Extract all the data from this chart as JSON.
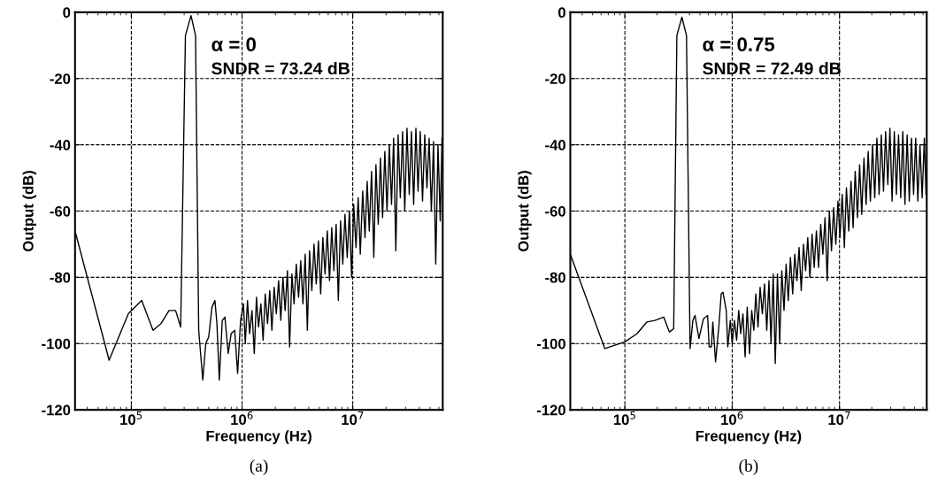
{
  "chart_data": [
    {
      "type": "line",
      "xlabel": "Frequency (Hz)",
      "ylabel": "Output (dB)",
      "log": "x",
      "grid": true,
      "line_style": "dashed",
      "marker": "none",
      "xlim": [
        31000.0,
        65000000.0
      ],
      "ylim": [
        -120,
        0
      ],
      "xticks": [
        {
          "value": 100000,
          "label": "10$^{5}$"
        },
        {
          "value": 1000000,
          "label": "10$^{6}$"
        },
        {
          "value": 10000000,
          "label": "10$^{7}$"
        }
      ],
      "yticks": [
        -120,
        -100,
        -80,
        -60,
        -40,
        -20,
        0
      ],
      "annotations": [
        "α = 0",
        "SNDR = 73.24 dB",
        "(a)"
      ],
      "series": [
        {
          "color": "#000000",
          "line_style": "solid",
          "x": [
            31000.0,
            63000.0,
            94000.0,
            124000.0,
            157000.0,
            185000.0,
            219000.0,
            251000.0,
            279000.0,
            308000.0,
            346000.0,
            380000.0,
            406000.0,
            442000.0,
            470000.0,
            500000.0,
            535000.0,
            569000.0,
            593000.0,
            623000.0,
            663000.0,
            700000.0,
            750000.0,
            797000.0,
            858000.0,
            912000.0,
            970000.0,
            1030000.0,
            1070000.0,
            1120000.0,
            1170000.0,
            1230000.0,
            1290000.0,
            1350000.0,
            1410000.0,
            1480000.0,
            1550000.0,
            1620000.0,
            1700000.0,
            1780000.0,
            1860000.0,
            1950000.0,
            2040000.0,
            2140000.0,
            2240000.0,
            2340000.0,
            2450000.0,
            2570000.0,
            2690000.0,
            2820000.0,
            2950000.0,
            3090000.0,
            3240000.0,
            3390000.0,
            3550000.0,
            3720000.0,
            3890000.0,
            4070000.0,
            4270000.0,
            4470000.0,
            4680000.0,
            4900000.0,
            5130000.0,
            5370000.0,
            5620000.0,
            5890000.0,
            6170000.0,
            6460000.0,
            6760000.0,
            7080000.0,
            7410000.0,
            7760000.0,
            8130000.0,
            8510000.0,
            8910000.0,
            9330000.0,
            9770000.0,
            10200000.0,
            10700000.0,
            11200000.0,
            11700000.0,
            12300000.0,
            12900000.0,
            13500000.0,
            14100000.0,
            14800000.0,
            15500000.0,
            16200000.0,
            17000000.0,
            17800000.0,
            18600000.0,
            19500000.0,
            20400000.0,
            21400000.0,
            22400000.0,
            23400000.0,
            24500000.0,
            25700000.0,
            26900000.0,
            28200000.0,
            29500000.0,
            30900000.0,
            32400000.0,
            33900000.0,
            35500000.0,
            37200000.0,
            38900000.0,
            40700000.0,
            42700000.0,
            44700000.0,
            46800000.0,
            49000000.0,
            51300000.0,
            53700000.0,
            56200000.0,
            58900000.0,
            61700000.0,
            64000000.0
          ],
          "values": [
            -66,
            -105,
            -91,
            -87,
            -96,
            -94,
            -90,
            -90,
            -95,
            -7,
            -1,
            -7,
            -96,
            -111,
            -100,
            -98,
            -89,
            -87,
            -94,
            -111,
            -93,
            -92,
            -103,
            -97,
            -96,
            -109,
            -93,
            -88,
            -100,
            -87,
            -97,
            -90,
            -103,
            -86,
            -95,
            -88,
            -99,
            -85,
            -94,
            -84,
            -96,
            -83,
            -91,
            -81,
            -93,
            -80,
            -90,
            -78,
            -101,
            -79,
            -88,
            -76,
            -86,
            -75,
            -88,
            -73,
            -96,
            -72,
            -84,
            -70,
            -82,
            -69,
            -85,
            -68,
            -79,
            -66,
            -81,
            -65,
            -78,
            -64,
            -87,
            -63,
            -76,
            -61,
            -74,
            -60,
            -80,
            -58,
            -71,
            -56,
            -73,
            -54,
            -68,
            -51,
            -66,
            -48,
            -74,
            -46,
            -64,
            -44,
            -62,
            -42,
            -60,
            -40,
            -58,
            -38,
            -72,
            -37,
            -56,
            -36,
            -60,
            -35,
            -55,
            -36,
            -58,
            -35,
            -54,
            -36,
            -57,
            -37,
            -53,
            -38,
            -60,
            -39,
            -76,
            -40,
            -63,
            -38
          ]
        }
      ]
    },
    {
      "type": "line",
      "xlabel": "Frequency (Hz)",
      "ylabel": "Output (dB)",
      "log": "x",
      "grid": true,
      "line_style": "dashed",
      "marker": "none",
      "xlim": [
        31000.0,
        65000000.0
      ],
      "ylim": [
        -120,
        0
      ],
      "xticks": [
        {
          "value": 100000,
          "label": "10$^{5}$"
        },
        {
          "value": 1000000,
          "label": "10$^{6}$"
        },
        {
          "value": 10000000,
          "label": "10$^{7}$"
        }
      ],
      "yticks": [
        -120,
        -100,
        -80,
        -60,
        -40,
        -20,
        0
      ],
      "annotations": [
        "α = 0.75",
        "SNDR = 72.49 dB",
        "(b)"
      ],
      "series": [
        {
          "color": "#000000",
          "line_style": "solid",
          "x": [
            31000.0,
            65000.0,
            100000.0,
            130000.0,
            160000.0,
            190000.0,
            230000.0,
            260000.0,
            285000.0,
            305000.0,
            340000.0,
            375000.0,
            405000.0,
            430000.0,
            450000.0,
            490000.0,
            540000.0,
            590000.0,
            610000.0,
            640000.0,
            660000.0,
            700000.0,
            750000.0,
            790000.0,
            820000.0,
            880000.0,
            910000.0,
            960000.0,
            1000000.0,
            1050000.0,
            1100000.0,
            1150000.0,
            1200000.0,
            1260000.0,
            1320000.0,
            1380000.0,
            1450000.0,
            1520000.0,
            1590000.0,
            1660000.0,
            1740000.0,
            1820000.0,
            1910000.0,
            2000000.0,
            2100000.0,
            2200000.0,
            2300000.0,
            2410000.0,
            2520000.0,
            2640000.0,
            2770000.0,
            2900000.0,
            3040000.0,
            3180000.0,
            3330000.0,
            3490000.0,
            3660000.0,
            3830000.0,
            4010000.0,
            4200000.0,
            4400000.0,
            4610000.0,
            4830000.0,
            5060000.0,
            5300000.0,
            5550000.0,
            5810000.0,
            6090000.0,
            6380000.0,
            6680000.0,
            7000000.0,
            7330000.0,
            7680000.0,
            8040000.0,
            8420000.0,
            8820000.0,
            9240000.0,
            9680000.0,
            10100000.0,
            10600000.0,
            11100000.0,
            11600000.0,
            12200000.0,
            12800000.0,
            13400000.0,
            14000000.0,
            14700000.0,
            15400000.0,
            16100000.0,
            16900000.0,
            17700000.0,
            18500000.0,
            19400000.0,
            20300000.0,
            21300000.0,
            22300000.0,
            23400000.0,
            24500000.0,
            25700000.0,
            26900000.0,
            28200000.0,
            29500000.0,
            30900000.0,
            32400000.0,
            33900000.0,
            35500000.0,
            37200000.0,
            38900000.0,
            40700000.0,
            42700000.0,
            44700000.0,
            46800000.0,
            49000000.0,
            51300000.0,
            53700000.0,
            56200000.0,
            58900000.0,
            61700000.0,
            64000000.0
          ],
          "values": [
            -73,
            -101.5,
            -99.5,
            -97,
            -93.5,
            -93,
            -92,
            -96.5,
            -95.5,
            -7,
            -1.5,
            -7,
            -101.5,
            -93,
            -91.5,
            -98.5,
            -92.5,
            -91.5,
            -101,
            -101,
            -93.5,
            -105.5,
            -95,
            -85,
            -84.5,
            -90,
            -101,
            -93,
            -100,
            -93,
            -99,
            -90,
            -97,
            -91,
            -104,
            -89,
            -103,
            -90,
            -96,
            -85,
            -95,
            -83,
            -91,
            -82,
            -96,
            -81,
            -100,
            -79,
            -106,
            -79,
            -100,
            -78,
            -90,
            -76,
            -87,
            -74,
            -85,
            -73,
            -81,
            -71,
            -84,
            -70,
            -78,
            -68,
            -80,
            -67,
            -77,
            -66,
            -77,
            -64,
            -73,
            -62,
            -81,
            -60,
            -72,
            -59,
            -70,
            -57,
            -68,
            -55,
            -71,
            -53,
            -66,
            -51,
            -65,
            -48,
            -62,
            -46,
            -61,
            -44,
            -58,
            -42,
            -57,
            -40,
            -56,
            -38,
            -55,
            -37,
            -54,
            -36,
            -52,
            -35,
            -57,
            -36,
            -55,
            -37,
            -56,
            -36,
            -58,
            -37,
            -57,
            -38,
            -55,
            -38,
            -57,
            -40,
            -56,
            -38,
            -55
          ]
        }
      ]
    }
  ]
}
